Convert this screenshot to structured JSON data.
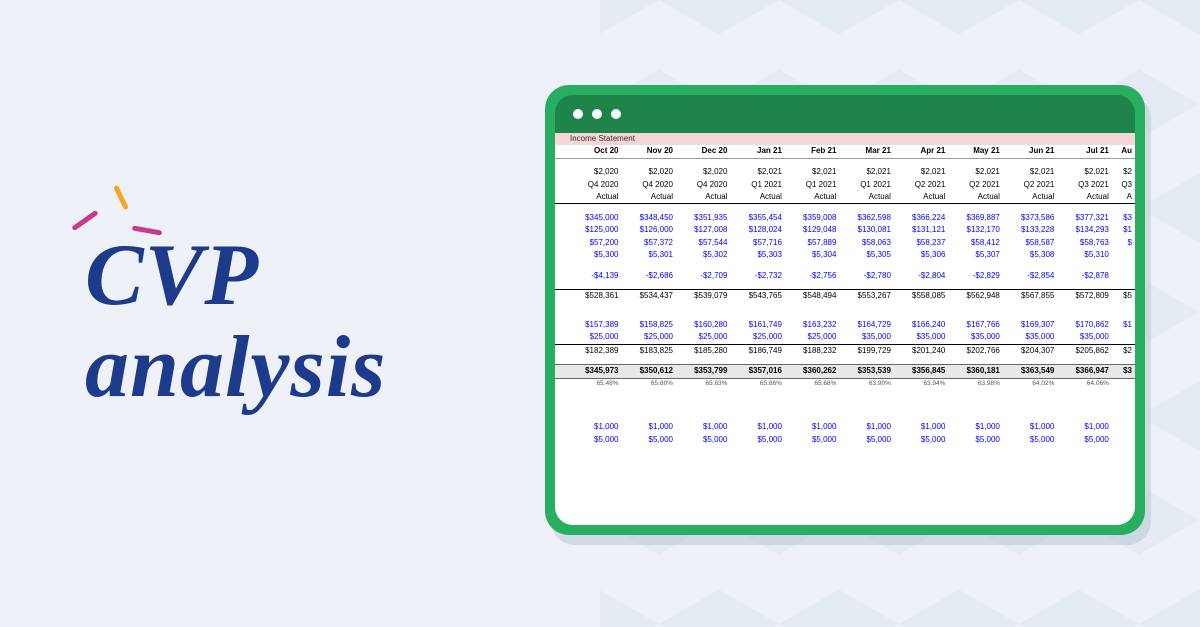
{
  "background_color": "#eef2f8",
  "title": {
    "line1": "CVP",
    "line2": "analysis",
    "color": "#1e3a8a",
    "font_size": 88,
    "accent_colors": [
      "#c73a8e",
      "#f5a623",
      "#c73a8e"
    ]
  },
  "window": {
    "outer_color": "#27ae60",
    "header_color": "#1e8449",
    "border_radius": 24,
    "dots": 3
  },
  "spreadsheet": {
    "label": "Income Statement",
    "label_bg": "#f5d5d5",
    "blue_color": "#0000ff",
    "text_color": "#000000",
    "headers": [
      "Oct 20",
      "Nov 20",
      "Dec 20",
      "Jan 21",
      "Feb 21",
      "Mar 21",
      "Apr 21",
      "May 21",
      "Jun 21",
      "Jul 21",
      "Au"
    ],
    "year_row": [
      "$2,020",
      "$2,020",
      "$2,020",
      "$2,021",
      "$2,021",
      "$2,021",
      "$2,021",
      "$2,021",
      "$2,021",
      "$2,021",
      "$2"
    ],
    "quarter_row": [
      "Q4 2020",
      "Q4 2020",
      "Q4 2020",
      "Q1 2021",
      "Q1 2021",
      "Q1 2021",
      "Q2 2021",
      "Q2 2021",
      "Q2 2021",
      "Q3 2021",
      "Q3"
    ],
    "actual_row": [
      "Actual",
      "Actual",
      "Actual",
      "Actual",
      "Actual",
      "Actual",
      "Actual",
      "Actual",
      "Actual",
      "Actual",
      "A"
    ],
    "data_rows": [
      [
        "$345,000",
        "$348,450",
        "$351,935",
        "$355,454",
        "$359,008",
        "$362,598",
        "$366,224",
        "$369,887",
        "$373,586",
        "$377,321",
        "$3"
      ],
      [
        "$125,000",
        "$126,000",
        "$127,008",
        "$128,024",
        "$129,048",
        "$130,081",
        "$131,121",
        "$132,170",
        "$133,228",
        "$134,293",
        "$1"
      ],
      [
        "$57,200",
        "$57,372",
        "$57,544",
        "$57,716",
        "$57,889",
        "$58,063",
        "$58,237",
        "$58,412",
        "$58,587",
        "$58,763",
        "$"
      ],
      [
        "$5,300",
        "$5,301",
        "$5,302",
        "$5,303",
        "$5,304",
        "$5,305",
        "$5,306",
        "$5,307",
        "$5,308",
        "$5,310",
        ""
      ]
    ],
    "neg_row": [
      "-$4,139",
      "-$2,686",
      "-$2,709",
      "-$2,732",
      "-$2,756",
      "-$2,780",
      "-$2,804",
      "-$2,829",
      "-$2,854",
      "-$2,878",
      ""
    ],
    "subtotal1": [
      "$528,361",
      "$534,437",
      "$539,079",
      "$543,765",
      "$548,494",
      "$553,267",
      "$558,085",
      "$562,948",
      "$567,855",
      "$572,809",
      "$5"
    ],
    "data_rows2": [
      [
        "$157,389",
        "$158,825",
        "$160,280",
        "$161,749",
        "$163,232",
        "$164,729",
        "$166,240",
        "$167,766",
        "$169,307",
        "$170,862",
        "$1"
      ],
      [
        "$25,000",
        "$25,000",
        "$25,000",
        "$25,000",
        "$25,000",
        "$35,000",
        "$35,000",
        "$35,000",
        "$35,000",
        "$35,000",
        ""
      ]
    ],
    "subtotal2": [
      "$182,389",
      "$183,825",
      "$185,280",
      "$186,749",
      "$188,232",
      "$199,729",
      "$201,240",
      "$202,766",
      "$204,307",
      "$205,862",
      "$2"
    ],
    "bold_total": [
      "$345,973",
      "$350,612",
      "$353,799",
      "$357,016",
      "$360,262",
      "$353,539",
      "$356,845",
      "$360,181",
      "$363,549",
      "$366,947",
      "$3"
    ],
    "pct_row": [
      "65.48%",
      "65.60%",
      "65.63%",
      "65.66%",
      "65.68%",
      "63.90%",
      "63.94%",
      "63.98%",
      "64.02%",
      "64.06%",
      ""
    ],
    "data_rows3": [
      [
        "$1,000",
        "$1,000",
        "$1,000",
        "$1,000",
        "$1,000",
        "$1,000",
        "$1,000",
        "$1,000",
        "$1,000",
        "$1,000",
        ""
      ],
      [
        "$5,000",
        "$5,000",
        "$5,000",
        "$5,000",
        "$5,000",
        "$5,000",
        "$5,000",
        "$5,000",
        "$5,000",
        "$5,000",
        ""
      ]
    ]
  }
}
